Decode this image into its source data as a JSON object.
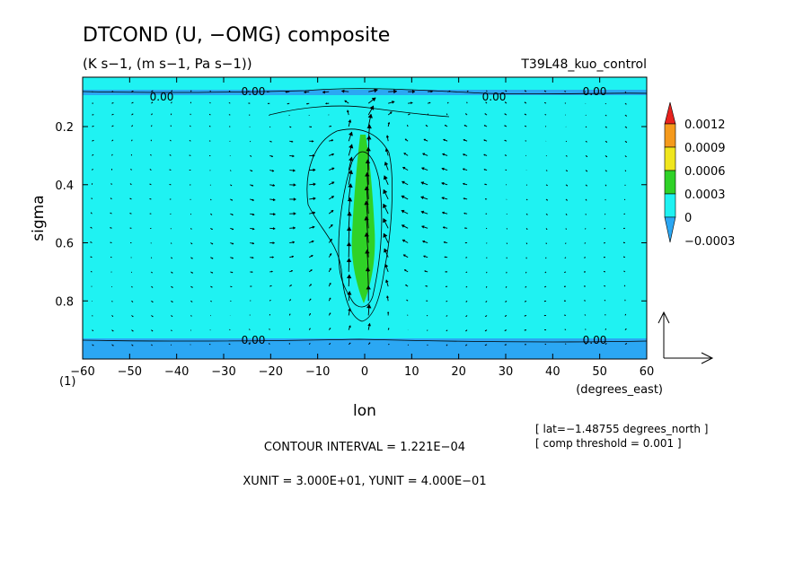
{
  "chart_data": {
    "type": "contour",
    "title": "DTCOND (U, −OMG) composite",
    "subtitle": "(K s−1, (m s−1, Pa s−1))",
    "run_name": "T39L48_kuo_control",
    "xlabel": "lon",
    "x_units": "(degrees_east)",
    "ylabel": "sigma",
    "y_origin_label": "(1)",
    "xlim": [
      -60,
      60
    ],
    "ylim": [
      1.0,
      0.03
    ],
    "x_ticks": [
      -60,
      -50,
      -40,
      -30,
      -20,
      -10,
      0,
      10,
      20,
      30,
      40,
      50,
      60
    ],
    "x_tick_labels": [
      "−60",
      "−50",
      "−40",
      "−30",
      "−20",
      "−10",
      "0",
      "10",
      "20",
      "30",
      "40",
      "50",
      "60"
    ],
    "y_ticks": [
      0.2,
      0.4,
      0.6,
      0.8
    ],
    "y_tick_labels": [
      "0.2",
      "0.4",
      "0.6",
      "0.8"
    ],
    "colorbar": {
      "levels": [
        "0.0012",
        "0.0009",
        "0.0006",
        "0.0003",
        "0",
        "−0.0003"
      ],
      "colors": [
        "#e8221e",
        "#f59a1c",
        "#f0e61e",
        "#2fd227",
        "#1ff2f2",
        "#2ba7f3"
      ]
    },
    "contour_labels": [
      "0.00",
      "0.00",
      "0.00",
      "0.00",
      "0.00",
      "0.00"
    ],
    "contour_interval_text": "CONTOUR INTERVAL = 1.221E−04",
    "unit_text": "XUNIT = 3.000E+01, YUNIT = 4.000E−01",
    "info": [
      "[ lat=−1.48755 degrees_north ]",
      "[ comp threshold = 0.001 ]"
    ],
    "colors": {
      "background_field": "#1ff2f2",
      "negative_field": "#2ba7f3",
      "heating_core": "#2fd227"
    }
  }
}
